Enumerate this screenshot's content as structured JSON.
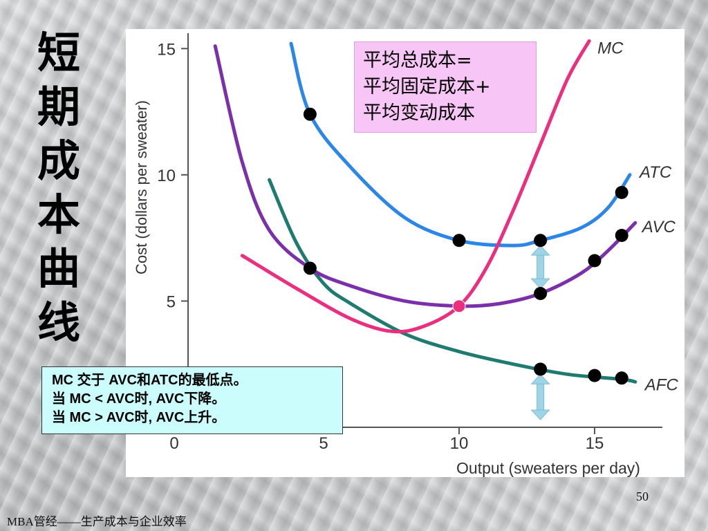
{
  "slide": {
    "title": "短期成本曲线",
    "page_number": "50",
    "footer": "MBA管经——生产成本与企业效率"
  },
  "avg_box": {
    "lines": [
      "平均总成本=",
      "平均固定成本+",
      "平均变动成本"
    ]
  },
  "note_box": {
    "lines": [
      "MC 交于 AVC和ATC的最低点。",
      "当 MC < AVC时, AVC下降。",
      "当 MC > AVC时, AVC上升。"
    ]
  },
  "colors": {
    "ATC": "#2b86e8",
    "AVC": "#7b2fa8",
    "MC": "#ea2f7e",
    "AFC": "#1f7a70",
    "dot": "#000000",
    "arrow": "#9fd4e6",
    "avg_box_bg": "#f8c6f6",
    "note_box_bg": "#ccfdfd"
  },
  "chart_data": {
    "type": "line",
    "xlabel": "Output (sweaters per day)",
    "ylabel": "Cost (dollars per sweater)",
    "xlim": [
      0,
      17.5
    ],
    "ylim": [
      0,
      15.5
    ],
    "x_ticks": [
      "0",
      "5",
      "10",
      "15"
    ],
    "y_ticks": [
      "5",
      "10",
      "15"
    ],
    "grid": false,
    "series": [
      {
        "name": "ATC",
        "points": [
          [
            3.8,
            15.2
          ],
          [
            4.5,
            12.4
          ],
          [
            6,
            10.3
          ],
          [
            8,
            8.3
          ],
          [
            10,
            7.4
          ],
          [
            12,
            7.2
          ],
          [
            13,
            7.4
          ],
          [
            14.5,
            7.9
          ],
          [
            15.5,
            8.7
          ],
          [
            16.3,
            10.0
          ]
        ]
      },
      {
        "name": "AVC",
        "points": [
          [
            1,
            15.1
          ],
          [
            2,
            10.5
          ],
          [
            3,
            7.8
          ],
          [
            4.5,
            6.3
          ],
          [
            6,
            5.6
          ],
          [
            8,
            5.0
          ],
          [
            10,
            4.8
          ],
          [
            11.5,
            4.9
          ],
          [
            13,
            5.3
          ],
          [
            14.5,
            6.1
          ],
          [
            15.5,
            7.0
          ],
          [
            16.5,
            8.1
          ]
        ]
      },
      {
        "name": "MC",
        "points": [
          [
            2,
            6.8
          ],
          [
            4,
            5.5
          ],
          [
            6,
            4.3
          ],
          [
            7.5,
            3.8
          ],
          [
            8.7,
            4.0
          ],
          [
            10,
            4.8
          ],
          [
            11,
            6.3
          ],
          [
            12,
            8.6
          ],
          [
            13,
            11.2
          ],
          [
            14,
            13.8
          ],
          [
            14.8,
            15.3
          ]
        ]
      },
      {
        "name": "AFC",
        "points": [
          [
            3,
            9.8
          ],
          [
            4,
            7.3
          ],
          [
            5,
            5.7
          ],
          [
            6,
            4.9
          ],
          [
            8,
            3.7
          ],
          [
            10,
            3.0
          ],
          [
            12,
            2.5
          ],
          [
            14,
            2.1
          ],
          [
            16,
            1.9
          ],
          [
            16.5,
            1.8
          ]
        ]
      }
    ],
    "dots": [
      [
        4.5,
        12.4
      ],
      [
        10,
        7.4
      ],
      [
        13,
        7.4
      ],
      [
        16,
        9.3
      ],
      [
        4.5,
        6.3
      ],
      [
        13,
        5.3
      ],
      [
        15,
        6.6
      ],
      [
        16,
        7.6
      ],
      [
        13,
        2.3
      ],
      [
        15,
        2.05
      ],
      [
        16,
        1.95
      ]
    ],
    "intersection_dot": [
      10,
      4.8
    ],
    "arrows": [
      {
        "x": 13,
        "y_top": 7.2,
        "y_bottom": 5.5
      },
      {
        "x": 13,
        "y_top": 2.1,
        "y_bottom": 0.3
      }
    ]
  }
}
